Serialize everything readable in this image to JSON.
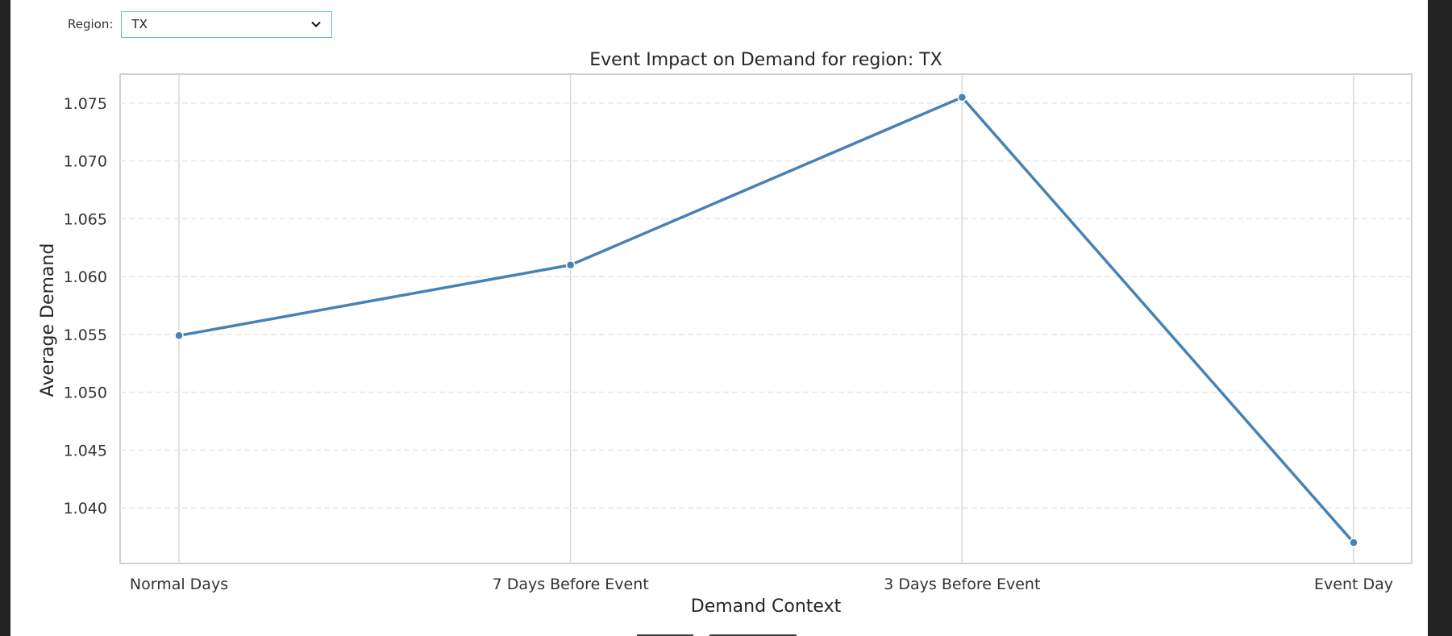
{
  "filter": {
    "label": "Region:",
    "selected": "TX"
  },
  "chart_data": {
    "type": "line",
    "title": "Event Impact on Demand for region: TX",
    "xlabel": "Demand Context",
    "ylabel": "Average Demand",
    "categories": [
      "Normal Days",
      "7 Days Before Event",
      "3 Days Before Event",
      "Event Day"
    ],
    "series": [
      {
        "values": [
          1.0549,
          1.061,
          1.0755,
          1.037
        ]
      }
    ],
    "ylim": [
      1.0352,
      1.0775
    ],
    "yticks": [
      "1.040",
      "1.045",
      "1.050",
      "1.055",
      "1.060",
      "1.065",
      "1.070",
      "1.075"
    ],
    "grid": true,
    "line_color": "#4682b4",
    "grid_color": "#e6e6e6"
  }
}
